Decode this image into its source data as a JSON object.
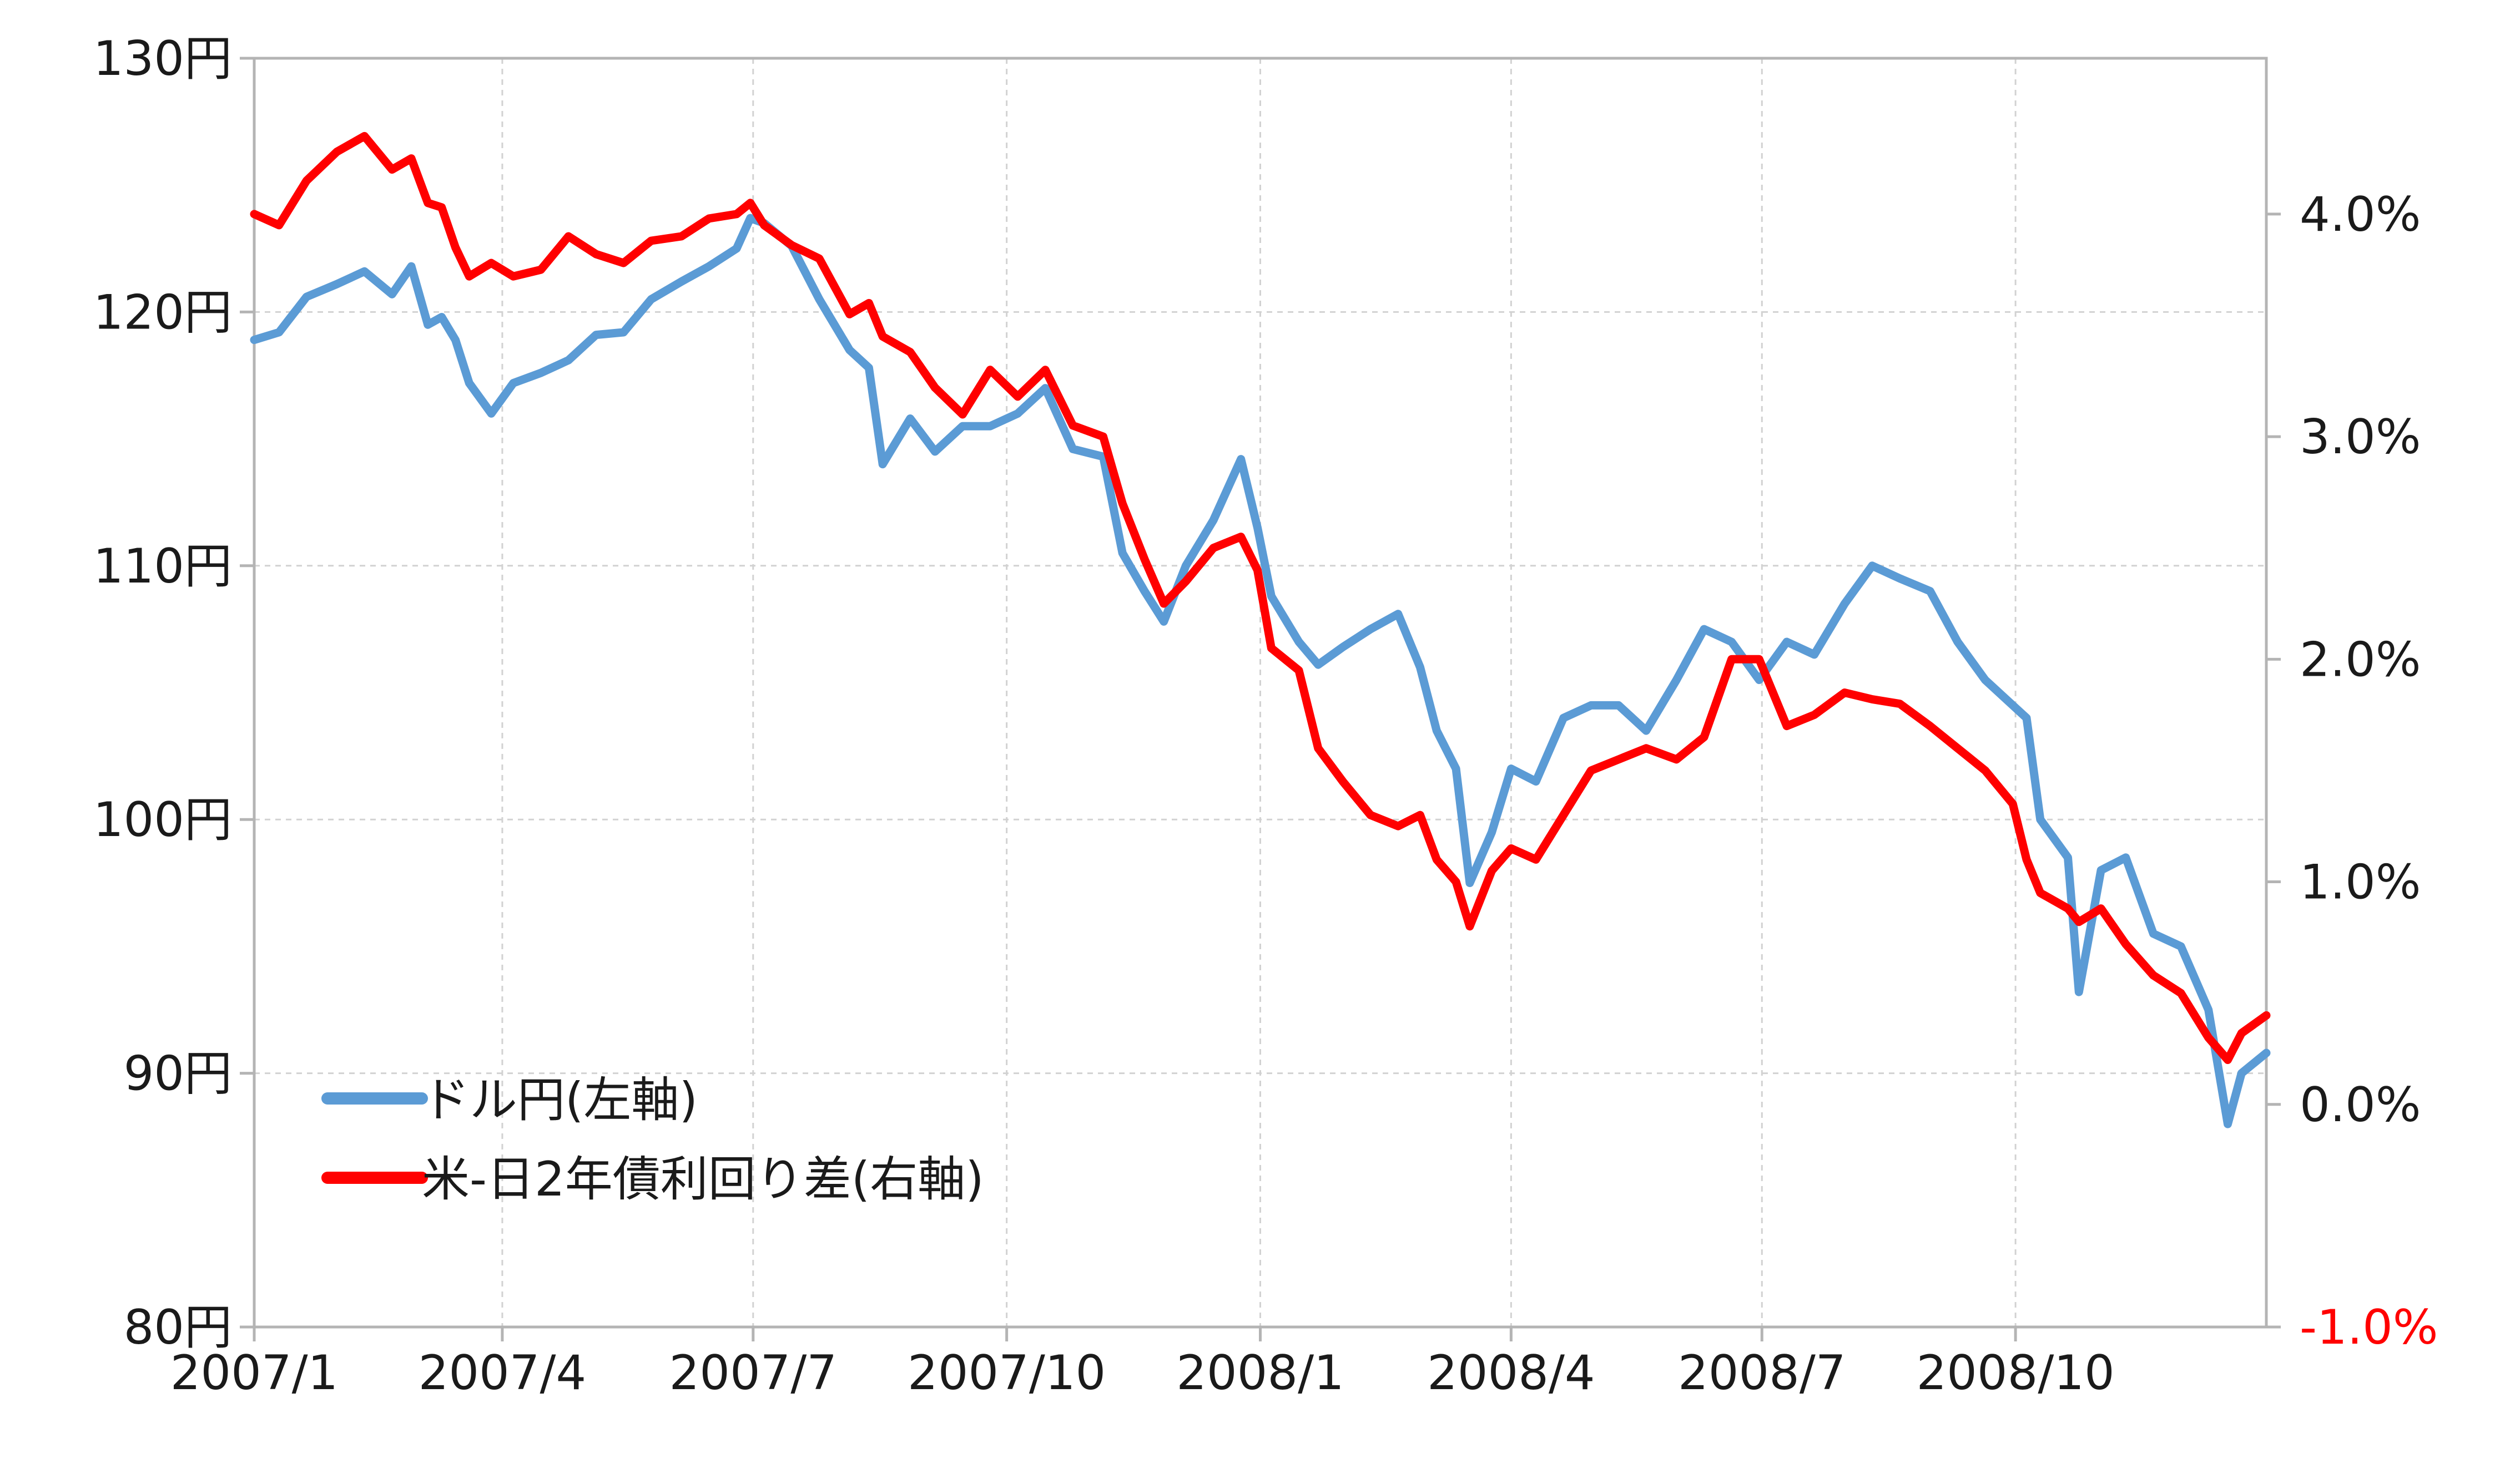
{
  "chart_data": {
    "type": "line",
    "left_axis": {
      "range": [
        80,
        130
      ],
      "ticks": [
        80,
        90,
        100,
        110,
        120,
        130
      ],
      "tick_labels": [
        "80円",
        "90円",
        "100円",
        "110円",
        "120円",
        "130円"
      ]
    },
    "right_axis": {
      "range": [
        -1.0,
        4.7
      ],
      "ticks": [
        -1.0,
        0.0,
        1.0,
        2.0,
        3.0,
        4.0
      ],
      "tick_labels": [
        "-1.0%",
        "0.0%",
        "1.0%",
        "2.0%",
        "3.0%",
        "4.0%"
      ],
      "negative_color": "#ff0000"
    },
    "x_axis": {
      "range": [
        "2007-01-01",
        "2008-12-31"
      ],
      "ticks": [
        "2007-01-01",
        "2007-04-01",
        "2007-07-01",
        "2007-10-01",
        "2008-01-01",
        "2008-04-01",
        "2008-07-01",
        "2008-10-01"
      ],
      "tick_labels": [
        "2007/1",
        "2007/4",
        "2007/7",
        "2007/10",
        "2008/1",
        "2008/4",
        "2008/7",
        "2008/10"
      ]
    },
    "grid": true,
    "legend_position": "bottom-left",
    "series": [
      {
        "name": "ドル円(左軸)",
        "axis": "left",
        "color": "#5b9bd5",
        "points": [
          [
            "2007-01-01",
            118.9
          ],
          [
            "2007-01-10",
            119.2
          ],
          [
            "2007-01-20",
            120.6
          ],
          [
            "2007-01-31",
            121.1
          ],
          [
            "2007-02-10",
            121.6
          ],
          [
            "2007-02-20",
            120.7
          ],
          [
            "2007-02-27",
            121.8
          ],
          [
            "2007-03-05",
            119.5
          ],
          [
            "2007-03-10",
            119.8
          ],
          [
            "2007-03-15",
            118.9
          ],
          [
            "2007-03-20",
            117.2
          ],
          [
            "2007-03-28",
            116.0
          ],
          [
            "2007-04-05",
            117.2
          ],
          [
            "2007-04-15",
            117.6
          ],
          [
            "2007-04-25",
            118.1
          ],
          [
            "2007-05-05",
            119.1
          ],
          [
            "2007-05-15",
            119.2
          ],
          [
            "2007-05-25",
            120.5
          ],
          [
            "2007-06-05",
            121.2
          ],
          [
            "2007-06-15",
            121.8
          ],
          [
            "2007-06-25",
            122.5
          ],
          [
            "2007-06-30",
            123.7
          ],
          [
            "2007-07-05",
            123.5
          ],
          [
            "2007-07-15",
            122.6
          ],
          [
            "2007-07-25",
            120.5
          ],
          [
            "2007-08-05",
            118.5
          ],
          [
            "2007-08-12",
            117.8
          ],
          [
            "2007-08-17",
            114.0
          ],
          [
            "2007-08-27",
            115.8
          ],
          [
            "2007-09-05",
            114.5
          ],
          [
            "2007-09-15",
            115.5
          ],
          [
            "2007-09-25",
            115.5
          ],
          [
            "2007-10-05",
            116.0
          ],
          [
            "2007-10-15",
            117.0
          ],
          [
            "2007-10-25",
            114.6
          ],
          [
            "2007-11-05",
            114.3
          ],
          [
            "2007-11-12",
            110.5
          ],
          [
            "2007-11-20",
            109.0
          ],
          [
            "2007-11-27",
            107.8
          ],
          [
            "2007-12-05",
            110.0
          ],
          [
            "2007-12-15",
            111.8
          ],
          [
            "2007-12-25",
            114.2
          ],
          [
            "2007-12-31",
            111.5
          ],
          [
            "2008-01-05",
            108.8
          ],
          [
            "2008-01-15",
            107.0
          ],
          [
            "2008-01-22",
            106.1
          ],
          [
            "2008-01-31",
            106.8
          ],
          [
            "2008-02-10",
            107.5
          ],
          [
            "2008-02-20",
            108.1
          ],
          [
            "2008-02-28",
            106.0
          ],
          [
            "2008-03-05",
            103.5
          ],
          [
            "2008-03-12",
            102.0
          ],
          [
            "2008-03-17",
            97.5
          ],
          [
            "2008-03-25",
            99.5
          ],
          [
            "2008-04-01",
            102.0
          ],
          [
            "2008-04-10",
            101.5
          ],
          [
            "2008-04-20",
            104.0
          ],
          [
            "2008-04-30",
            104.5
          ],
          [
            "2008-05-10",
            104.5
          ],
          [
            "2008-05-20",
            103.5
          ],
          [
            "2008-05-31",
            105.5
          ],
          [
            "2008-06-10",
            107.5
          ],
          [
            "2008-06-20",
            107.0
          ],
          [
            "2008-06-30",
            105.5
          ],
          [
            "2008-07-10",
            107.0
          ],
          [
            "2008-07-20",
            106.5
          ],
          [
            "2008-07-31",
            108.5
          ],
          [
            "2008-08-10",
            110.0
          ],
          [
            "2008-08-20",
            109.5
          ],
          [
            "2008-08-31",
            109.0
          ],
          [
            "2008-09-10",
            107.0
          ],
          [
            "2008-09-20",
            105.5
          ],
          [
            "2008-09-30",
            104.5
          ],
          [
            "2008-10-05",
            104.0
          ],
          [
            "2008-10-10",
            100.0
          ],
          [
            "2008-10-20",
            98.5
          ],
          [
            "2008-10-24",
            93.2
          ],
          [
            "2008-11-01",
            98.0
          ],
          [
            "2008-11-10",
            98.5
          ],
          [
            "2008-11-20",
            95.5
          ],
          [
            "2008-11-30",
            95.0
          ],
          [
            "2008-12-10",
            92.5
          ],
          [
            "2008-12-17",
            88.0
          ],
          [
            "2008-12-22",
            90.0
          ],
          [
            "2008-12-31",
            90.8
          ]
        ]
      },
      {
        "name": "米-日2年債利回り差(右軸)",
        "axis": "right",
        "color": "#ff0000",
        "points": [
          [
            "2007-01-01",
            4.0
          ],
          [
            "2007-01-10",
            3.95
          ],
          [
            "2007-01-20",
            4.15
          ],
          [
            "2007-01-31",
            4.28
          ],
          [
            "2007-02-10",
            4.35
          ],
          [
            "2007-02-20",
            4.2
          ],
          [
            "2007-02-27",
            4.25
          ],
          [
            "2007-03-05",
            4.05
          ],
          [
            "2007-03-10",
            4.03
          ],
          [
            "2007-03-15",
            3.85
          ],
          [
            "2007-03-20",
            3.72
          ],
          [
            "2007-03-28",
            3.78
          ],
          [
            "2007-04-05",
            3.72
          ],
          [
            "2007-04-15",
            3.75
          ],
          [
            "2007-04-25",
            3.9
          ],
          [
            "2007-05-05",
            3.82
          ],
          [
            "2007-05-15",
            3.78
          ],
          [
            "2007-05-25",
            3.88
          ],
          [
            "2007-06-05",
            3.9
          ],
          [
            "2007-06-15",
            3.98
          ],
          [
            "2007-06-25",
            4.0
          ],
          [
            "2007-06-30",
            4.05
          ],
          [
            "2007-07-05",
            3.95
          ],
          [
            "2007-07-15",
            3.86
          ],
          [
            "2007-07-25",
            3.8
          ],
          [
            "2007-08-05",
            3.55
          ],
          [
            "2007-08-12",
            3.6
          ],
          [
            "2007-08-17",
            3.45
          ],
          [
            "2007-08-27",
            3.38
          ],
          [
            "2007-09-05",
            3.22
          ],
          [
            "2007-09-15",
            3.1
          ],
          [
            "2007-09-25",
            3.3
          ],
          [
            "2007-10-05",
            3.18
          ],
          [
            "2007-10-15",
            3.3
          ],
          [
            "2007-10-25",
            3.05
          ],
          [
            "2007-11-05",
            3.0
          ],
          [
            "2007-11-12",
            2.7
          ],
          [
            "2007-11-20",
            2.45
          ],
          [
            "2007-11-27",
            2.25
          ],
          [
            "2007-12-05",
            2.35
          ],
          [
            "2007-12-15",
            2.5
          ],
          [
            "2007-12-25",
            2.55
          ],
          [
            "2007-12-31",
            2.4
          ],
          [
            "2008-01-05",
            2.05
          ],
          [
            "2008-01-15",
            1.95
          ],
          [
            "2008-01-22",
            1.6
          ],
          [
            "2008-01-31",
            1.45
          ],
          [
            "2008-02-10",
            1.3
          ],
          [
            "2008-02-20",
            1.25
          ],
          [
            "2008-02-28",
            1.3
          ],
          [
            "2008-03-05",
            1.1
          ],
          [
            "2008-03-12",
            1.0
          ],
          [
            "2008-03-17",
            0.8
          ],
          [
            "2008-03-25",
            1.05
          ],
          [
            "2008-04-01",
            1.15
          ],
          [
            "2008-04-10",
            1.1
          ],
          [
            "2008-04-20",
            1.3
          ],
          [
            "2008-04-30",
            1.5
          ],
          [
            "2008-05-10",
            1.55
          ],
          [
            "2008-05-20",
            1.6
          ],
          [
            "2008-05-31",
            1.55
          ],
          [
            "2008-06-10",
            1.65
          ],
          [
            "2008-06-20",
            2.0
          ],
          [
            "2008-06-30",
            2.0
          ],
          [
            "2008-07-10",
            1.7
          ],
          [
            "2008-07-20",
            1.75
          ],
          [
            "2008-07-31",
            1.85
          ],
          [
            "2008-08-10",
            1.82
          ],
          [
            "2008-08-20",
            1.8
          ],
          [
            "2008-08-31",
            1.7
          ],
          [
            "2008-09-10",
            1.6
          ],
          [
            "2008-09-20",
            1.5
          ],
          [
            "2008-09-30",
            1.35
          ],
          [
            "2008-10-05",
            1.1
          ],
          [
            "2008-10-10",
            0.95
          ],
          [
            "2008-10-20",
            0.88
          ],
          [
            "2008-10-24",
            0.82
          ],
          [
            "2008-11-01",
            0.88
          ],
          [
            "2008-11-10",
            0.72
          ],
          [
            "2008-11-20",
            0.58
          ],
          [
            "2008-11-30",
            0.5
          ],
          [
            "2008-12-10",
            0.3
          ],
          [
            "2008-12-17",
            0.2
          ],
          [
            "2008-12-22",
            0.32
          ],
          [
            "2008-12-31",
            0.4
          ]
        ]
      }
    ]
  }
}
